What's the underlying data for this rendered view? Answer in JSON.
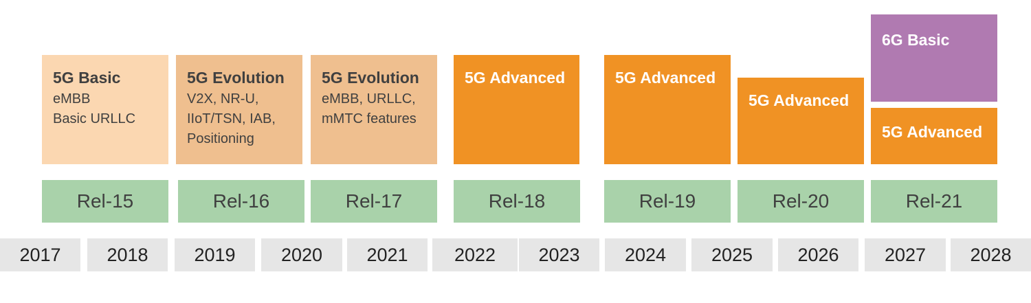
{
  "colors": {
    "basic": "#fbd7b1",
    "evolution": "#efbf8f",
    "advanced": "#f09224",
    "sixg": "#b07ab1",
    "release": "#a9d2aa",
    "year": "#e6e6e6"
  },
  "features": [
    {
      "title": "5G Basic",
      "lines": [
        "eMBB",
        "Basic URLLC"
      ]
    },
    {
      "title": "5G Evolution",
      "lines": [
        "V2X, NR-U,",
        "IIoT/TSN, IAB,",
        "Positioning"
      ]
    },
    {
      "title": "5G Evolution",
      "lines": [
        "eMBB, URLLC,",
        "mMTC features"
      ]
    },
    {
      "title": "5G Advanced"
    },
    {
      "title": "5G Advanced"
    },
    {
      "title": "5G Advanced"
    },
    {
      "title": "6G Basic"
    },
    {
      "title": "5G Advanced"
    }
  ],
  "releases": [
    "Rel-15",
    "Rel-16",
    "Rel-17",
    "Rel-18",
    "Rel-19",
    "Rel-20",
    "Rel-21"
  ],
  "years": [
    "2017",
    "2018",
    "2019",
    "2020",
    "2021",
    "2022",
    "2023",
    "2024",
    "2025",
    "2026",
    "2027",
    "2028"
  ]
}
